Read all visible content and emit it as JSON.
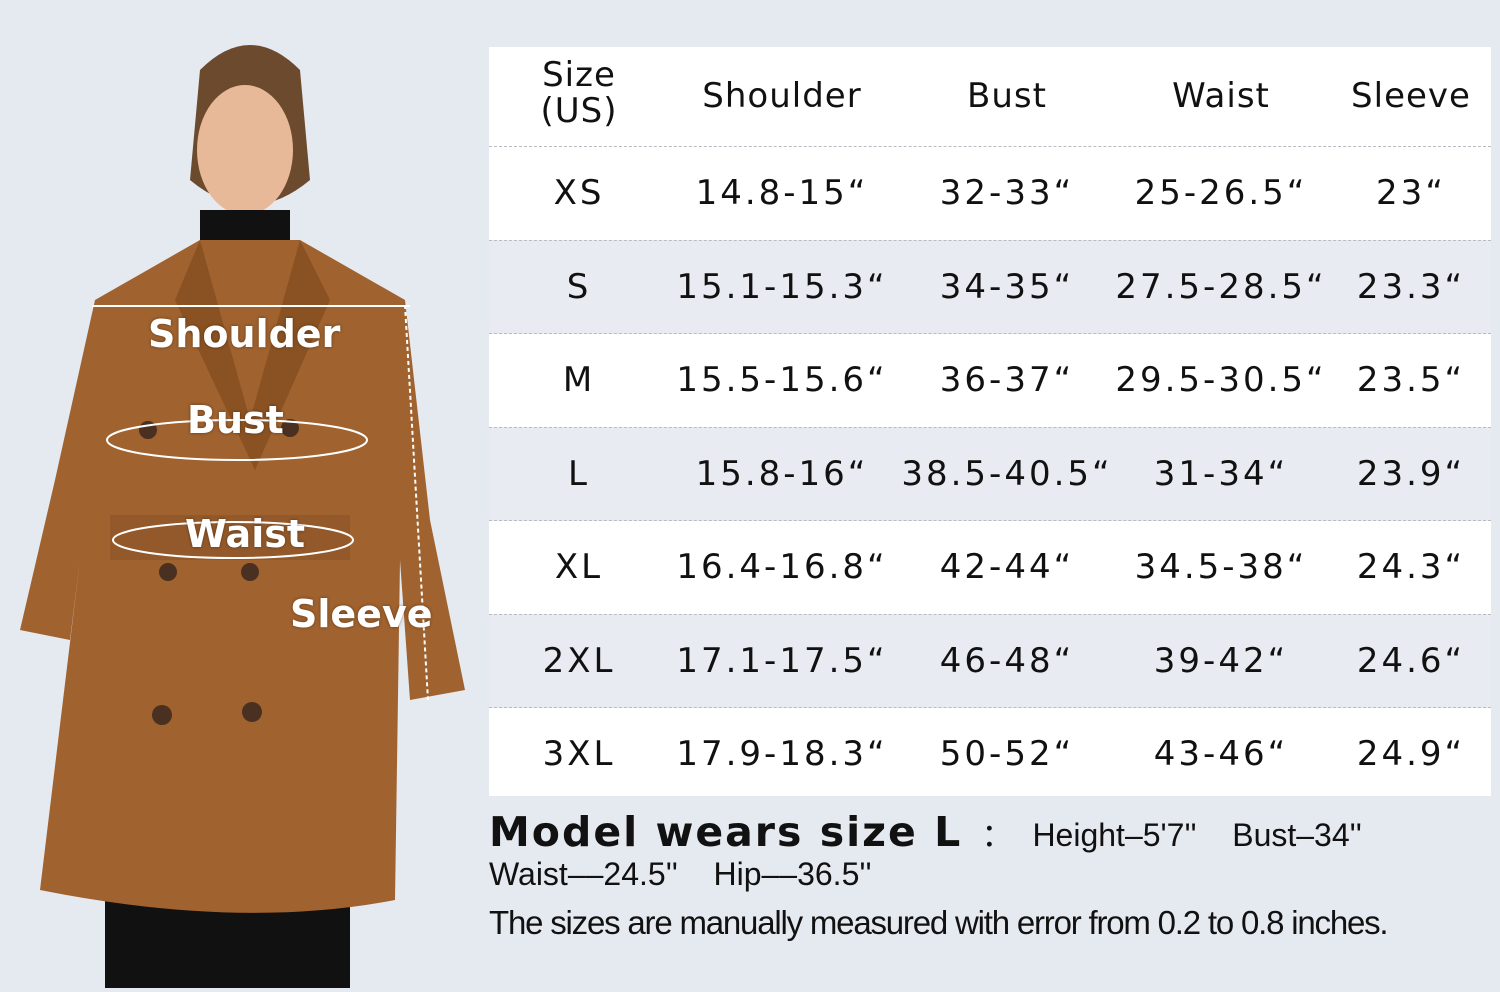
{
  "labels": {
    "shoulder": "Shoulder",
    "bust": "Bust",
    "waist": "Waist",
    "sleeve": "Sleeve"
  },
  "table": {
    "headers": [
      "Size\n(US)",
      "Shoulder",
      "Bust",
      "Waist",
      "Sleeve"
    ],
    "header_size_line1": "Size",
    "header_size_line2": "(US)",
    "rows": [
      [
        "XS",
        "14.8-15“",
        "32-33“",
        "25-26.5“",
        "23“"
      ],
      [
        "S",
        "15.1-15.3“",
        "34-35“",
        "27.5-28.5“",
        "23.3“"
      ],
      [
        "M",
        "15.5-15.6“",
        "36-37“",
        "29.5-30.5“",
        "23.5“"
      ],
      [
        "L",
        "15.8-16“",
        "38.5-40.5“",
        "31-34“",
        "23.9“"
      ],
      [
        "XL",
        "16.4-16.8“",
        "42-44“",
        "34.5-38“",
        "24.3“"
      ],
      [
        "2XL",
        "17.1-17.5“",
        "46-48“",
        "39-42“",
        "24.6“"
      ],
      [
        "3XL",
        "17.9-18.3“",
        "50-52“",
        "43-46“",
        "24.9“"
      ]
    ]
  },
  "model_info": {
    "title": "Model wears size L",
    "colon": "：",
    "line1": "Height–5'7''    Bust–34''",
    "line2": "Waist––24.5''    Hip––36.5''"
  },
  "disclaimer": "The sizes are manually measured with error from 0.2 to 0.8 inches.",
  "colors": {
    "coat": "#a0622e",
    "background": "#e5e9f0",
    "alt_row": "#e8ecf2"
  }
}
